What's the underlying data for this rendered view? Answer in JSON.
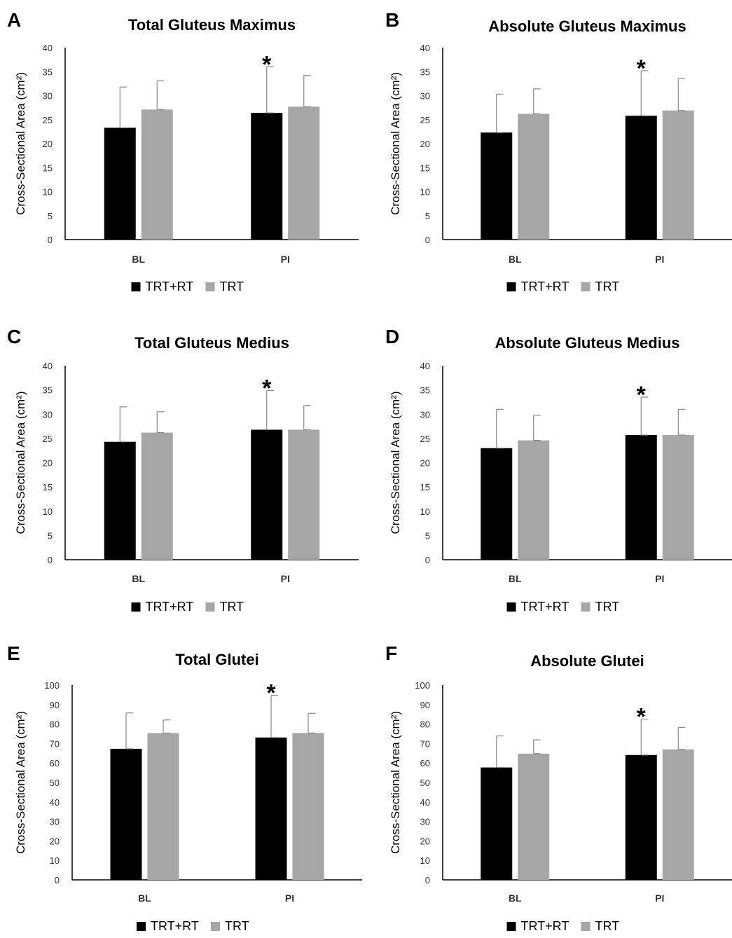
{
  "chart_data": [
    {
      "panel": "A",
      "type": "bar",
      "title": "Total Gluteus Maximus",
      "ylabel": "Cross-Sectional Area (cm²)",
      "xlabel": "",
      "categories": [
        "BL",
        "PI"
      ],
      "ylim": [
        0,
        40
      ],
      "yticks": [
        "0",
        "5",
        "10",
        "15",
        "20",
        "25",
        "30",
        "35",
        "40"
      ],
      "series": [
        {
          "name": "TRT+RT",
          "color": "#000000",
          "values": [
            23.3,
            26.4
          ],
          "errors": [
            8.5,
            9.6
          ]
        },
        {
          "name": "TRT",
          "color": "#a6a6a6",
          "values": [
            27.1,
            27.7
          ],
          "errors": [
            6.0,
            6.5
          ]
        }
      ],
      "annotations": [
        {
          "category": "PI",
          "series": "TRT+RT",
          "text": "*"
        }
      ],
      "legend_position": "bottom",
      "grid": false
    },
    {
      "panel": "B",
      "type": "bar",
      "title": "Absolute Gluteus Maximus",
      "ylabel": "Cross-Sectional Area (cm²)",
      "xlabel": "",
      "categories": [
        "BL",
        "PI"
      ],
      "ylim": [
        0,
        40
      ],
      "yticks": [
        "0",
        "5",
        "10",
        "15",
        "20",
        "25",
        "30",
        "35",
        "40"
      ],
      "series": [
        {
          "name": "TRT+RT",
          "color": "#000000",
          "values": [
            22.3,
            25.8
          ],
          "errors": [
            8.0,
            9.4
          ]
        },
        {
          "name": "TRT",
          "color": "#a6a6a6",
          "values": [
            26.2,
            26.9
          ],
          "errors": [
            5.2,
            6.7
          ]
        }
      ],
      "annotations": [
        {
          "category": "PI",
          "series": "TRT+RT",
          "text": "*"
        }
      ],
      "legend_position": "bottom",
      "grid": false
    },
    {
      "panel": "C",
      "type": "bar",
      "title": "Total Gluteus Medius",
      "ylabel": "Cross-Sectional Area (cm²)",
      "xlabel": "",
      "categories": [
        "BL",
        "PI"
      ],
      "ylim": [
        0,
        40
      ],
      "yticks": [
        "0",
        "5",
        "10",
        "15",
        "20",
        "25",
        "30",
        "35",
        "40"
      ],
      "series": [
        {
          "name": "TRT+RT",
          "color": "#000000",
          "values": [
            24.3,
            26.8
          ],
          "errors": [
            7.2,
            8.1
          ]
        },
        {
          "name": "TRT",
          "color": "#a6a6a6",
          "values": [
            26.2,
            26.8
          ],
          "errors": [
            4.3,
            5.0
          ]
        }
      ],
      "annotations": [
        {
          "category": "PI",
          "series": "TRT+RT",
          "text": "*"
        }
      ],
      "legend_position": "bottom",
      "grid": false
    },
    {
      "panel": "D",
      "type": "bar",
      "title": "Absolute Gluteus Medius",
      "ylabel": "Cross-Sectional Area (cm²)",
      "xlabel": "",
      "categories": [
        "BL",
        "PI"
      ],
      "ylim": [
        0,
        40
      ],
      "yticks": [
        "0",
        "5",
        "10",
        "15",
        "20",
        "25",
        "30",
        "35",
        "40"
      ],
      "series": [
        {
          "name": "TRT+RT",
          "color": "#000000",
          "values": [
            23.0,
            25.7
          ],
          "errors": [
            8.0,
            7.8
          ]
        },
        {
          "name": "TRT",
          "color": "#a6a6a6",
          "values": [
            24.6,
            25.7
          ],
          "errors": [
            5.2,
            5.3
          ]
        }
      ],
      "annotations": [
        {
          "category": "PI",
          "series": "TRT+RT",
          "text": "*"
        }
      ],
      "legend_position": "bottom",
      "grid": false
    },
    {
      "panel": "E",
      "type": "bar",
      "title": "Total Glutei",
      "ylabel": "Cross-Sectional Area (cm²)",
      "xlabel": "",
      "categories": [
        "BL",
        "PI"
      ],
      "ylim": [
        0,
        100
      ],
      "yticks": [
        "0",
        "10",
        "20",
        "30",
        "40",
        "50",
        "60",
        "70",
        "80",
        "90",
        "100"
      ],
      "series": [
        {
          "name": "TRT+RT",
          "color": "#000000",
          "values": [
            67.3,
            73.1
          ],
          "errors": [
            18.4,
            21.6
          ]
        },
        {
          "name": "TRT",
          "color": "#a6a6a6",
          "values": [
            75.4,
            75.4
          ],
          "errors": [
            6.7,
            10.1
          ]
        }
      ],
      "annotations": [
        {
          "category": "PI",
          "series": "TRT+RT",
          "text": "*"
        }
      ],
      "legend_position": "bottom",
      "grid": false
    },
    {
      "panel": "F",
      "type": "bar",
      "title": "Absolute Glutei",
      "ylabel": "Cross-Sectional Area (cm²)",
      "xlabel": "",
      "categories": [
        "BL",
        "PI"
      ],
      "ylim": [
        0,
        100
      ],
      "yticks": [
        "0",
        "10",
        "20",
        "30",
        "40",
        "50",
        "60",
        "70",
        "80",
        "90",
        "100"
      ],
      "series": [
        {
          "name": "TRT+RT",
          "color": "#000000",
          "values": [
            57.7,
            64.1
          ],
          "errors": [
            16.2,
            18.5
          ]
        },
        {
          "name": "TRT",
          "color": "#a6a6a6",
          "values": [
            64.8,
            67.0
          ],
          "errors": [
            7.1,
            11.3
          ]
        }
      ],
      "annotations": [
        {
          "category": "PI",
          "series": "TRT+RT",
          "text": "*"
        }
      ],
      "legend_position": "bottom",
      "grid": false
    }
  ]
}
